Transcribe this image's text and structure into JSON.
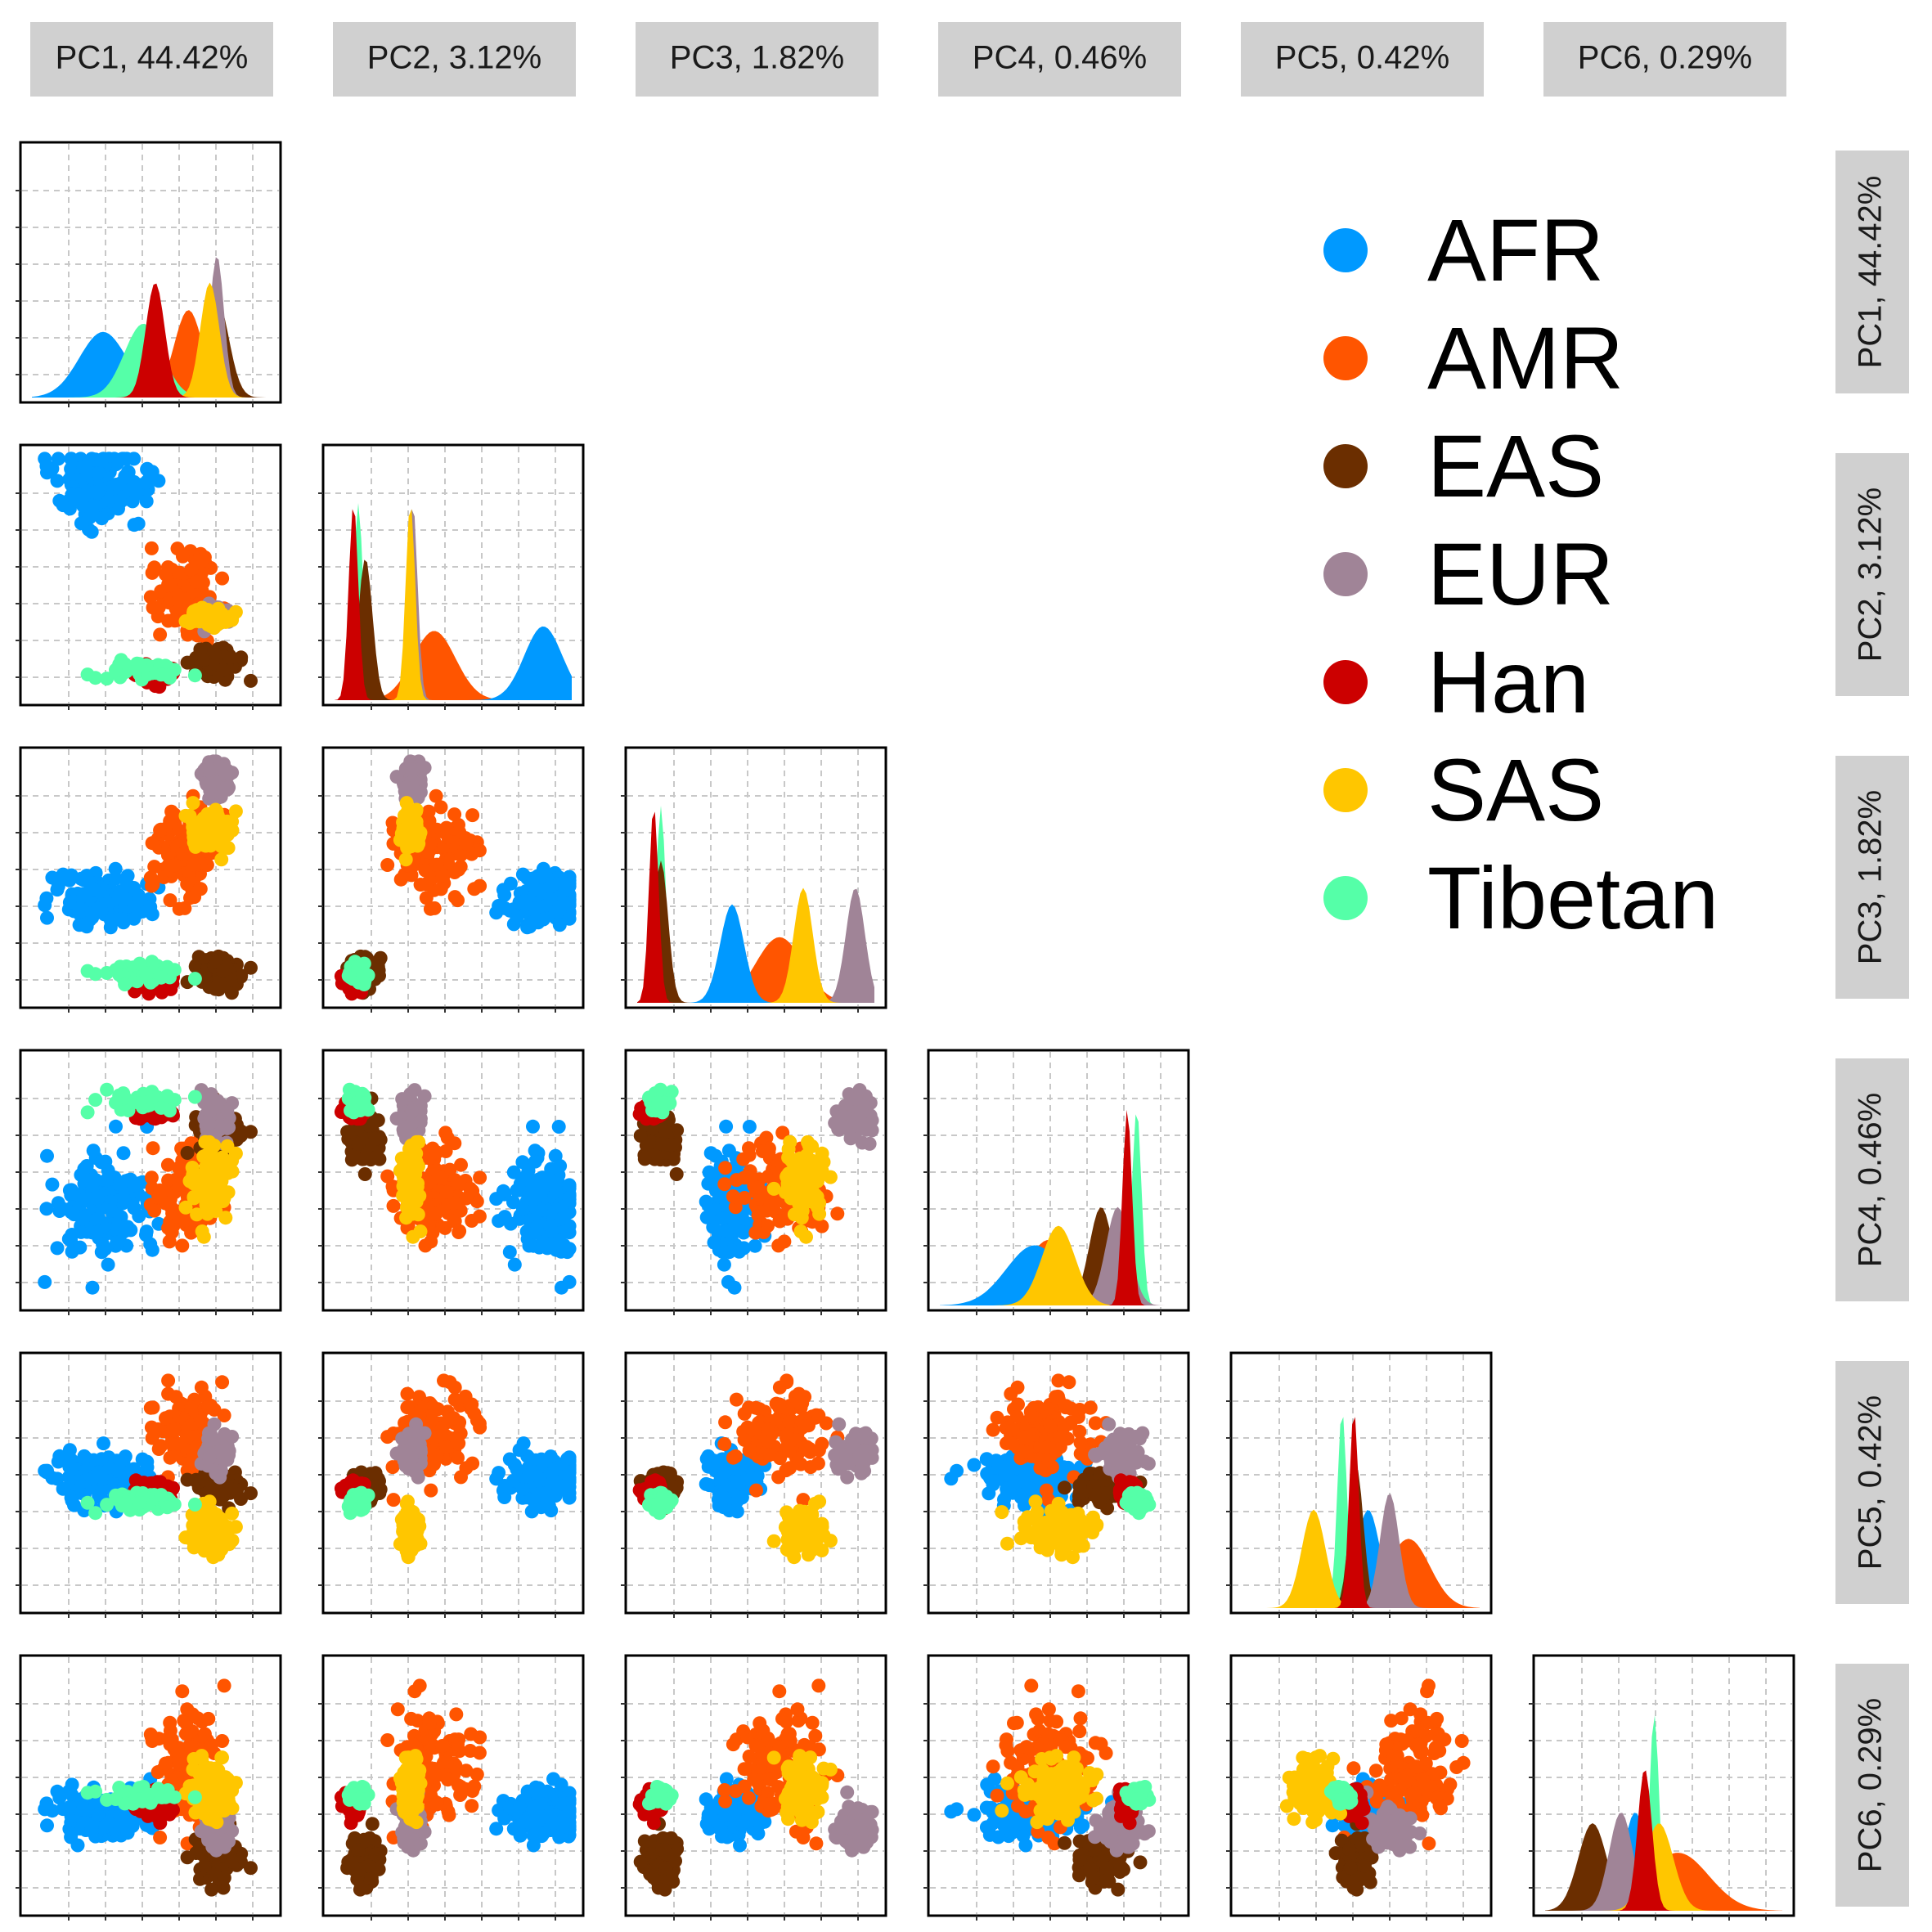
{
  "chart_data": {
    "type": "scatter",
    "layout": "pairs-matrix (lower triangle scatter, diagonal density)",
    "variables": [
      {
        "id": "PC1",
        "label": "PC1, 44.42%"
      },
      {
        "id": "PC2",
        "label": "PC2, 3.12%"
      },
      {
        "id": "PC3",
        "label": "PC3, 1.82%"
      },
      {
        "id": "PC4",
        "label": "PC4, 0.46%"
      },
      {
        "id": "PC5",
        "label": "PC5, 0.42%"
      },
      {
        "id": "PC6",
        "label": "PC6, 0.29%"
      }
    ],
    "grid": true,
    "legend_position": "top-right",
    "groups": [
      {
        "name": "AFR",
        "color": "#0099FF"
      },
      {
        "name": "AMR",
        "color": "#FF5500"
      },
      {
        "name": "EAS",
        "color": "#6B2E00"
      },
      {
        "name": "EUR",
        "color": "#A08497"
      },
      {
        "name": "Han",
        "color": "#CC0000"
      },
      {
        "name": "SAS",
        "color": "#FFC600"
      },
      {
        "name": "Tibetan",
        "color": "#55FFA8"
      }
    ],
    "group_stats_normalized": {
      "description": "Approximate cluster centers and spreads per group on each PC, scaled 0-1 within each axis as read from the plot",
      "AFR": {
        "mean": [
          0.3,
          0.88,
          0.4,
          0.4,
          0.53,
          0.38
        ],
        "sd": [
          0.1,
          0.08,
          0.05,
          0.12,
          0.05,
          0.05
        ]
      },
      "AMR": {
        "mean": [
          0.66,
          0.42,
          0.6,
          0.46,
          0.7,
          0.56
        ],
        "sd": [
          0.06,
          0.09,
          0.1,
          0.1,
          0.09,
          0.13
        ]
      },
      "EAS": {
        "mean": [
          0.78,
          0.13,
          0.1,
          0.68,
          0.48,
          0.2
        ],
        "sd": [
          0.05,
          0.03,
          0.03,
          0.05,
          0.03,
          0.06
        ]
      },
      "EUR": {
        "mean": [
          0.78,
          0.33,
          0.92,
          0.75,
          0.62,
          0.32
        ],
        "sd": [
          0.03,
          0.02,
          0.04,
          0.05,
          0.04,
          0.05
        ]
      },
      "Han": {
        "mean": [
          0.52,
          0.08,
          0.07,
          0.79,
          0.47,
          0.42
        ],
        "sd": [
          0.04,
          0.02,
          0.02,
          0.02,
          0.02,
          0.03
        ]
      },
      "SAS": {
        "mean": [
          0.75,
          0.32,
          0.7,
          0.5,
          0.3,
          0.48
        ],
        "sd": [
          0.04,
          0.02,
          0.04,
          0.07,
          0.05,
          0.06
        ]
      },
      "Tibetan": {
        "mean": [
          0.47,
          0.1,
          0.1,
          0.83,
          0.42,
          0.46
        ],
        "sd": [
          0.08,
          0.02,
          0.02,
          0.02,
          0.02,
          0.02
        ]
      }
    }
  }
}
